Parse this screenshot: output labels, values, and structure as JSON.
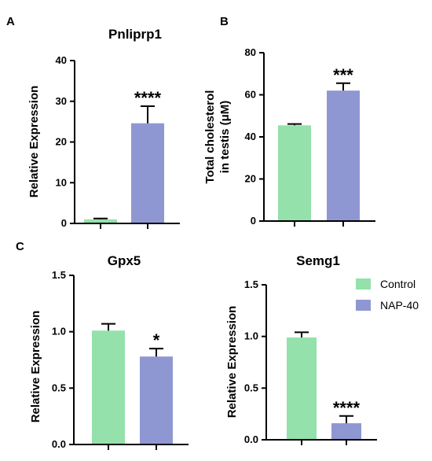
{
  "colors": {
    "control": "#94e1ab",
    "nap40": "#8f97d2",
    "axis": "#000000"
  },
  "panel_letters": {
    "a": "A",
    "b": "B",
    "c": "C"
  },
  "legend": {
    "control": "Control",
    "nap40": "NAP-40"
  },
  "chart_data": [
    {
      "type": "bar",
      "title": "Pnliprp1",
      "ylabel": "Relative Expression",
      "ylim": [
        0,
        40
      ],
      "yticks": [
        0,
        10,
        20,
        30,
        40
      ],
      "ytick_labels": [
        "0",
        "10",
        "20",
        "30",
        "40"
      ],
      "categories": [
        "Control",
        "NAP-40"
      ],
      "values": [
        1.0,
        24.6
      ],
      "errors": [
        0.2,
        4.2
      ],
      "significance": [
        "",
        "****"
      ]
    },
    {
      "type": "bar",
      "title": "",
      "ylabel_lines": [
        "Total cholesterol",
        "in testis (μM)"
      ],
      "ylim": [
        0,
        80
      ],
      "yticks": [
        0,
        20,
        40,
        60,
        80
      ],
      "ytick_labels": [
        "0",
        "20",
        "40",
        "60",
        "80"
      ],
      "categories": [
        "Control",
        "NAP-40"
      ],
      "values": [
        45.5,
        62.0
      ],
      "errors": [
        0.6,
        3.5
      ],
      "significance": [
        "",
        "***"
      ]
    },
    {
      "type": "bar",
      "title": "Gpx5",
      "ylabel": "Relative Expression",
      "ylim": [
        0,
        1.5
      ],
      "yticks": [
        0,
        0.5,
        1.0,
        1.5
      ],
      "ytick_labels": [
        "0.0",
        "0.5",
        "1.0",
        "1.5"
      ],
      "categories": [
        "Control",
        "NAP-40"
      ],
      "values": [
        1.01,
        0.78
      ],
      "errors": [
        0.06,
        0.07
      ],
      "significance": [
        "",
        "*"
      ]
    },
    {
      "type": "bar",
      "title": "Semg1",
      "ylabel": "Relative Expression",
      "ylim": [
        0,
        1.5
      ],
      "yticks": [
        0,
        0.5,
        1.0,
        1.5
      ],
      "ytick_labels": [
        "0.0",
        "0.5",
        "1.0",
        "1.5"
      ],
      "categories": [
        "Control",
        "NAP-40"
      ],
      "values": [
        0.99,
        0.16
      ],
      "errors": [
        0.05,
        0.07
      ],
      "significance": [
        "",
        "****"
      ]
    }
  ]
}
